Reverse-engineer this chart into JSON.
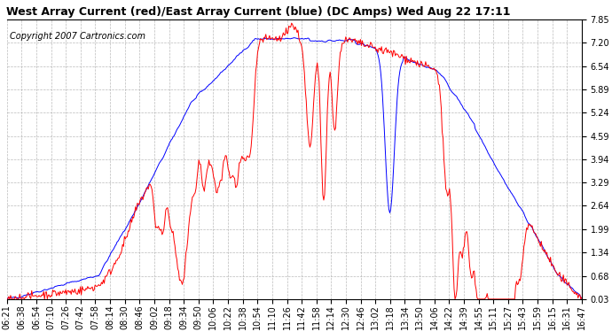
{
  "title": "West Array Current (red)/East Array Current (blue) (DC Amps) Wed Aug 22 17:11",
  "copyright": "Copyright 2007 Cartronics.com",
  "yticks": [
    0.03,
    0.68,
    1.34,
    1.99,
    2.64,
    3.29,
    3.94,
    4.59,
    5.24,
    5.89,
    6.54,
    7.2,
    7.85
  ],
  "ylim": [
    0.03,
    7.85
  ],
  "xlabels": [
    "06:21",
    "06:38",
    "06:54",
    "07:10",
    "07:26",
    "07:42",
    "07:58",
    "08:14",
    "08:30",
    "08:46",
    "09:02",
    "09:18",
    "09:34",
    "09:50",
    "10:06",
    "10:22",
    "10:38",
    "10:54",
    "11:10",
    "11:26",
    "11:42",
    "11:58",
    "12:14",
    "12:30",
    "12:46",
    "13:02",
    "13:18",
    "13:34",
    "13:50",
    "14:06",
    "14:22",
    "14:39",
    "14:55",
    "15:11",
    "15:27",
    "15:43",
    "15:59",
    "16:15",
    "16:31",
    "16:47"
  ],
  "background_color": "#ffffff",
  "plot_bg_color": "#ffffff",
  "grid_color": "#aaaaaa",
  "title_fontsize": 9,
  "copyright_fontsize": 7,
  "tick_fontsize": 7,
  "red_color": "#ff0000",
  "blue_color": "#0000ff",
  "line_width": 0.7
}
